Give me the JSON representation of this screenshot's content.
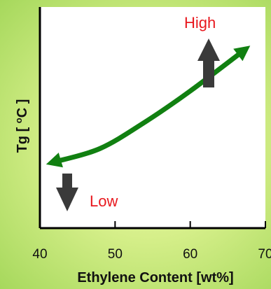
{
  "chart_data": {
    "type": "line",
    "xlabel": "Ethylene Content [wt%]",
    "ylabel": "Tg [ oC ]",
    "y_unit_prefix": "Tg [ ",
    "y_unit_sup": "o",
    "y_unit_suffix": "C ]",
    "xlim": [
      40,
      70
    ],
    "x_ticks": [
      "40",
      "50",
      "60",
      "70"
    ],
    "y_ticks": [],
    "series": [
      {
        "x": [
          42,
          48,
          54,
          60,
          67
        ],
        "y": [
          0.3,
          0.36,
          0.48,
          0.62,
          0.8
        ]
      }
    ],
    "annotations": {
      "high": "High",
      "low": "Low"
    },
    "colors": {
      "curve": "#118011",
      "arrow": "#3a3a3a",
      "annotation": "#e8181e"
    }
  }
}
